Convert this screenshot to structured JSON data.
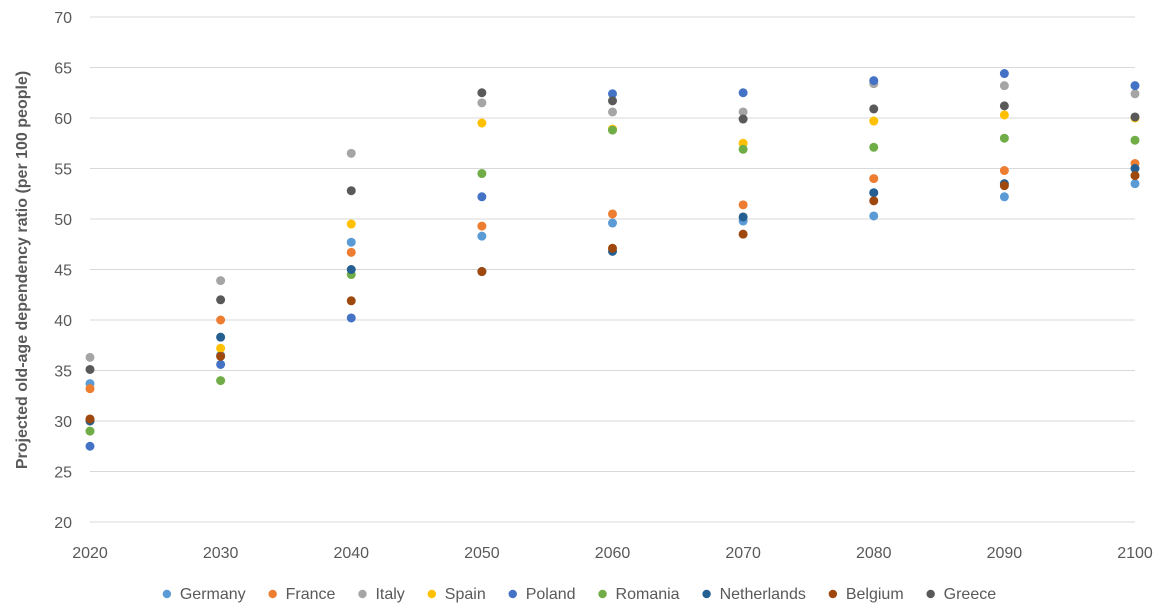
{
  "chart_data": {
    "type": "scatter",
    "title": "",
    "xlabel": "",
    "ylabel": "Projected old-age dependency ratio (per 100 people)",
    "x": [
      2020,
      2030,
      2040,
      2050,
      2060,
      2070,
      2080,
      2090,
      2100
    ],
    "xlim": [
      2020,
      2100
    ],
    "ylim": [
      20,
      70
    ],
    "x_ticks": [
      "2020",
      "2030",
      "2040",
      "2050",
      "2060",
      "2070",
      "2080",
      "2090",
      "2100"
    ],
    "y_ticks": [
      "20",
      "25",
      "30",
      "35",
      "40",
      "45",
      "50",
      "55",
      "60",
      "65",
      "70"
    ],
    "grid": "horizontal",
    "legend_position": "bottom",
    "series": [
      {
        "name": "Germany",
        "color": "#5B9BD5",
        "values": [
          33.7,
          36.5,
          47.7,
          48.3,
          49.6,
          49.8,
          50.3,
          52.2,
          53.5
        ]
      },
      {
        "name": "France",
        "color": "#ED7D31",
        "values": [
          33.2,
          40.0,
          46.7,
          49.3,
          50.5,
          51.4,
          54.0,
          54.8,
          55.5
        ]
      },
      {
        "name": "Italy",
        "color": "#A5A5A5",
        "values": [
          36.3,
          43.9,
          56.5,
          61.5,
          60.6,
          60.6,
          63.4,
          63.2,
          62.4
        ]
      },
      {
        "name": "Spain",
        "color": "#FFC000",
        "values": [
          30.0,
          37.2,
          49.5,
          59.5,
          58.9,
          57.5,
          59.7,
          60.3,
          60.0
        ]
      },
      {
        "name": "Poland",
        "color": "#4472C4",
        "values": [
          27.5,
          35.6,
          40.2,
          52.2,
          62.4,
          62.5,
          63.7,
          64.4,
          63.2
        ]
      },
      {
        "name": "Romania",
        "color": "#70AD47",
        "values": [
          29.0,
          34.0,
          44.5,
          54.5,
          58.8,
          56.9,
          57.1,
          58.0,
          57.8
        ]
      },
      {
        "name": "Netherlands",
        "color": "#255E91",
        "values": [
          30.0,
          38.3,
          45.0,
          44.8,
          46.8,
          50.2,
          52.6,
          53.5,
          55.0
        ]
      },
      {
        "name": "Belgium",
        "color": "#9E480E",
        "values": [
          30.2,
          36.4,
          41.9,
          44.8,
          47.1,
          48.5,
          51.8,
          53.3,
          54.3
        ]
      },
      {
        "name": "Greece",
        "color": "#595959",
        "values": [
          35.1,
          42.0,
          52.8,
          62.5,
          61.7,
          59.9,
          60.9,
          61.2,
          60.1
        ]
      }
    ]
  }
}
